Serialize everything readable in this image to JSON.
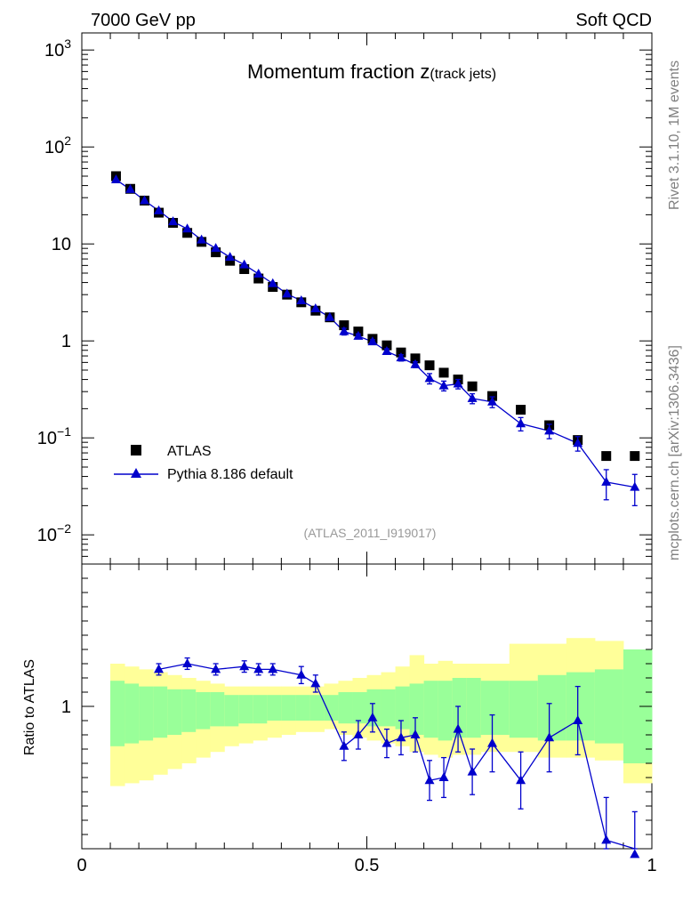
{
  "header": {
    "left": "7000 GeV pp",
    "right": "Soft QCD"
  },
  "side": {
    "top": "Rivet 3.1.10,  1M events",
    "bottom": "mcplots.cern.ch [arXiv:1306.3436]"
  },
  "plot": {
    "title_main": "Momentum fraction ",
    "title_z": "z",
    "title_sub": "(track jets)",
    "analysis_id": "(ATLAS_2011_I919017)",
    "ratio_ylabel": "Ratio to ATLAS"
  },
  "colors": {
    "mc": "#0000cc",
    "data": "#000000",
    "band_inner": "#99ff99",
    "band_outer": "#ffff99"
  },
  "chart_data": [
    {
      "type": "scatter",
      "title": "Momentum fraction z(track jets)",
      "xlim": [
        0,
        1
      ],
      "ylim": [
        0.005,
        1500
      ],
      "yscale": "log",
      "x_ticks": [
        "0",
        "0.5",
        "1"
      ],
      "y_ticks": [
        {
          "base": "10",
          "exp": "3",
          "value": 1000
        },
        {
          "base": "10",
          "exp": "2",
          "value": 100
        },
        {
          "base": "10",
          "exp": "",
          "value": 10
        },
        {
          "base": "1",
          "exp": "",
          "value": 1
        },
        {
          "base": "10",
          "exp": "−1",
          "value": 0.1
        },
        {
          "base": "10",
          "exp": "−2",
          "value": 0.01
        }
      ],
      "legend": {
        "position": "bottom-left"
      },
      "series": [
        {
          "name": "ATLAS",
          "marker": "square",
          "x": [
            0.06,
            0.085,
            0.11,
            0.135,
            0.16,
            0.185,
            0.21,
            0.235,
            0.26,
            0.285,
            0.31,
            0.335,
            0.36,
            0.385,
            0.41,
            0.435,
            0.46,
            0.485,
            0.51,
            0.535,
            0.56,
            0.585,
            0.61,
            0.635,
            0.66,
            0.685,
            0.72,
            0.77,
            0.82,
            0.87,
            0.92,
            0.97
          ],
          "y": [
            50,
            37,
            28,
            21,
            16.5,
            13,
            10.5,
            8.2,
            6.7,
            5.5,
            4.4,
            3.6,
            3.0,
            2.5,
            2.05,
            1.75,
            1.45,
            1.25,
            1.05,
            0.9,
            0.76,
            0.66,
            0.56,
            0.47,
            0.4,
            0.34,
            0.27,
            0.195,
            0.135,
            0.095,
            0.065,
            0.065
          ]
        },
        {
          "name": "Pythia 8.186 default",
          "marker": "triangle",
          "x": [
            0.06,
            0.085,
            0.11,
            0.135,
            0.16,
            0.185,
            0.21,
            0.235,
            0.26,
            0.285,
            0.31,
            0.335,
            0.36,
            0.385,
            0.41,
            0.435,
            0.46,
            0.485,
            0.51,
            0.535,
            0.56,
            0.585,
            0.61,
            0.635,
            0.66,
            0.685,
            0.72,
            0.77,
            0.82,
            0.87,
            0.92,
            0.97
          ],
          "y": [
            46,
            36.5,
            28,
            22,
            17,
            14.3,
            11,
            9.0,
            7.3,
            6.1,
            4.9,
            3.9,
            3.05,
            2.6,
            2.15,
            1.75,
            1.25,
            1.12,
            0.98,
            0.78,
            0.67,
            0.57,
            0.41,
            0.345,
            0.36,
            0.255,
            0.235,
            0.14,
            0.118,
            0.088,
            0.035,
            0.031
          ],
          "yerr": [
            0,
            0,
            0,
            0,
            0,
            0,
            0,
            0,
            0,
            0,
            0,
            0,
            0,
            0,
            0,
            0,
            0.1,
            0.06,
            0.05,
            0.05,
            0.05,
            0.04,
            0.05,
            0.04,
            0.04,
            0.03,
            0.03,
            0.022,
            0.02,
            0.015,
            0.012,
            0.011
          ]
        }
      ]
    },
    {
      "type": "scatter",
      "ylabel": "Ratio to ATLAS",
      "xlim": [
        0,
        1
      ],
      "ylim": [
        0.5,
        1.5
      ],
      "y_ticks": [
        {
          "label": "1",
          "value": 1
        }
      ],
      "bands": {
        "x_edges": [
          0.05,
          0.075,
          0.1,
          0.125,
          0.15,
          0.175,
          0.2,
          0.225,
          0.25,
          0.275,
          0.3,
          0.325,
          0.35,
          0.375,
          0.4,
          0.425,
          0.45,
          0.475,
          0.5,
          0.525,
          0.55,
          0.575,
          0.6,
          0.625,
          0.65,
          0.675,
          0.7,
          0.75,
          0.8,
          0.85,
          0.9,
          0.95,
          1.0
        ],
        "inner_lo": [
          0.86,
          0.87,
          0.88,
          0.89,
          0.9,
          0.91,
          0.92,
          0.93,
          0.93,
          0.94,
          0.94,
          0.95,
          0.95,
          0.95,
          0.95,
          0.95,
          0.94,
          0.94,
          0.93,
          0.93,
          0.92,
          0.9,
          0.89,
          0.88,
          0.89,
          0.89,
          0.9,
          0.89,
          0.88,
          0.88,
          0.87,
          0.8
        ],
        "inner_hi": [
          1.09,
          1.08,
          1.07,
          1.07,
          1.06,
          1.06,
          1.05,
          1.05,
          1.04,
          1.04,
          1.04,
          1.04,
          1.04,
          1.04,
          1.04,
          1.04,
          1.05,
          1.05,
          1.06,
          1.06,
          1.07,
          1.08,
          1.09,
          1.09,
          1.1,
          1.1,
          1.09,
          1.09,
          1.11,
          1.12,
          1.13,
          1.2
        ],
        "outer_lo": [
          0.72,
          0.73,
          0.74,
          0.76,
          0.78,
          0.8,
          0.82,
          0.84,
          0.86,
          0.87,
          0.88,
          0.89,
          0.9,
          0.91,
          0.91,
          0.92,
          0.9,
          0.89,
          0.88,
          0.87,
          0.86,
          0.84,
          0.83,
          0.82,
          0.83,
          0.83,
          0.84,
          0.84,
          0.82,
          0.82,
          0.81,
          0.73
        ],
        "outer_hi": [
          1.15,
          1.14,
          1.13,
          1.12,
          1.11,
          1.1,
          1.09,
          1.08,
          1.07,
          1.07,
          1.07,
          1.07,
          1.07,
          1.07,
          1.07,
          1.08,
          1.09,
          1.1,
          1.11,
          1.12,
          1.14,
          1.18,
          1.15,
          1.16,
          1.15,
          1.15,
          1.15,
          1.22,
          1.22,
          1.24,
          1.23,
          1.2
        ]
      },
      "series": [
        {
          "name": "Pythia 8.186 default",
          "x": [
            0.135,
            0.185,
            0.235,
            0.285,
            0.31,
            0.335,
            0.385,
            0.41,
            0.46,
            0.485,
            0.51,
            0.535,
            0.56,
            0.585,
            0.61,
            0.635,
            0.66,
            0.685,
            0.72,
            0.77,
            0.82,
            0.87,
            0.92,
            0.97
          ],
          "y": [
            1.13,
            1.15,
            1.13,
            1.14,
            1.13,
            1.13,
            1.11,
            1.08,
            0.86,
            0.9,
            0.96,
            0.87,
            0.89,
            0.9,
            0.74,
            0.75,
            0.92,
            0.77,
            0.87,
            0.74,
            0.89,
            0.95,
            0.53,
            0.48
          ],
          "yerr": [
            0.02,
            0.02,
            0.02,
            0.02,
            0.02,
            0.02,
            0.03,
            0.03,
            0.05,
            0.05,
            0.05,
            0.05,
            0.06,
            0.06,
            0.07,
            0.07,
            0.08,
            0.08,
            0.1,
            0.1,
            0.12,
            0.12,
            0.15,
            0.15
          ]
        }
      ]
    }
  ]
}
